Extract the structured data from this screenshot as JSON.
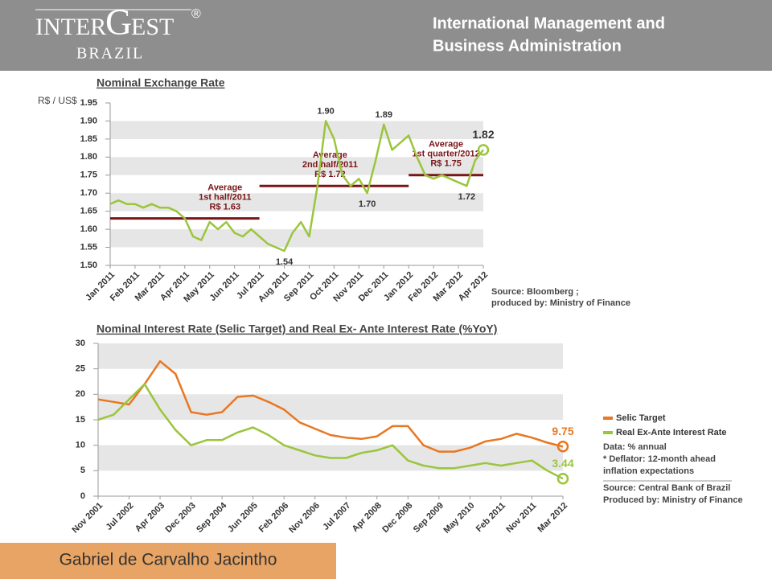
{
  "header": {
    "logo": {
      "part1": "INTER",
      "part2": "G",
      "part3": "EST",
      "mark": "®",
      "sub": "BRAZIL"
    },
    "title_lines": [
      "International Management and",
      "Business Administration"
    ]
  },
  "footer": {
    "author": "Gabriel de Carvalho Jacintho"
  },
  "chart_data": [
    {
      "type": "line",
      "title": "Nominal Exchange Rate",
      "y_label": "R$ / US$",
      "categories": [
        "Jan 2011",
        null,
        null,
        "Feb 2011",
        null,
        null,
        "Mar 2011",
        null,
        null,
        "Apr 2011",
        null,
        null,
        "May 2011",
        null,
        null,
        "Jun 2011",
        null,
        null,
        "Jul 2011",
        null,
        null,
        "Aug 2011",
        null,
        null,
        "Sep 2011",
        null,
        null,
        "Oct 2011",
        null,
        null,
        "Nov 2011",
        null,
        null,
        "Dec 2011",
        null,
        null,
        "Jan 2012",
        null,
        null,
        "Feb 2012",
        null,
        null,
        "Mar 2012",
        null,
        null,
        "Apr 2012"
      ],
      "series": [
        {
          "name": null,
          "color": "#9bc53d",
          "values": [
            1.67,
            1.68,
            1.67,
            1.67,
            1.66,
            1.67,
            1.66,
            1.66,
            1.65,
            1.63,
            1.58,
            1.57,
            1.62,
            1.6,
            1.62,
            1.59,
            1.58,
            1.6,
            1.58,
            1.56,
            1.55,
            1.54,
            1.59,
            1.62,
            1.58,
            1.72,
            1.9,
            1.85,
            1.75,
            1.72,
            1.74,
            1.7,
            1.79,
            1.89,
            1.82,
            1.84,
            1.86,
            1.8,
            1.75,
            1.74,
            1.75,
            1.74,
            1.73,
            1.72,
            1.79,
            1.82
          ],
          "value_labels": [
            null,
            null,
            null,
            null,
            null,
            null,
            null,
            null,
            null,
            null,
            null,
            null,
            null,
            null,
            null,
            null,
            null,
            null,
            null,
            null,
            null,
            "1.54",
            null,
            null,
            null,
            null,
            "1.90",
            null,
            null,
            null,
            null,
            "1.70",
            null,
            "1.89",
            null,
            null,
            null,
            null,
            null,
            null,
            null,
            null,
            null,
            "1.72",
            null,
            "1.82"
          ]
        }
      ],
      "ylim": [
        1.5,
        1.95
      ],
      "yticks": [
        {
          "value": 1.5,
          "label": "1.50"
        },
        1.55,
        {
          "value": 1.6,
          "label": "1.60"
        },
        1.65,
        {
          "value": 1.7,
          "label": "1.70"
        },
        1.75,
        {
          "value": 1.8,
          "label": "1.80"
        },
        1.85,
        {
          "value": 1.9,
          "label": "1.90"
        },
        1.95
      ],
      "grid": "bands",
      "averages": [
        {
          "lines": [
            "Average",
            "1st half/2011",
            "R$ 1.63"
          ],
          "value": 1.63,
          "start": "Jan 2011",
          "end": "Jul 2011"
        },
        {
          "lines": [
            "Average",
            "2nd half/2011",
            "R$ 1.72"
          ],
          "value": 1.72,
          "start": "Jul 2011",
          "end": "Jan 2012"
        },
        {
          "lines": [
            "Average",
            "1st quarter/2012",
            "R$ 1.75"
          ],
          "value": 1.75,
          "start": "Jan 2012",
          "end": "Apr 2012"
        }
      ],
      "notes": [
        "Source: Bloomberg ;",
        "produced by: Ministry of Finance"
      ]
    },
    {
      "type": "line",
      "title": "Nominal Interest Rate (Selic Target) and Real Ex- Ante Interest Rate (%YoY)",
      "categories": [
        "Nov 2001",
        null,
        "Jul 2002",
        null,
        "Apr 2003",
        null,
        "Dec 2003",
        null,
        "Sep 2004",
        null,
        "Jun 2005",
        null,
        "Feb 2006",
        null,
        "Nov 2006",
        null,
        "Jul 2007",
        null,
        "Apr 2008",
        null,
        "Dec 2008",
        null,
        "Sep 2009",
        null,
        "May 2010",
        null,
        "Feb 2011",
        null,
        "Nov 2011",
        null,
        "Mar 2012"
      ],
      "series": [
        {
          "name": "Selic Target",
          "color": "#e87722",
          "values": [
            19,
            18.5,
            18,
            22,
            26.5,
            24,
            16.5,
            16,
            16.5,
            19.5,
            19.75,
            18.5,
            17,
            14.5,
            13.25,
            12,
            11.5,
            11.25,
            11.75,
            13.75,
            13.75,
            10,
            8.75,
            8.75,
            9.5,
            10.75,
            11.25,
            12.25,
            11.5,
            10.5,
            9.75
          ],
          "value_labels": [
            null,
            null,
            null,
            null,
            null,
            null,
            null,
            null,
            null,
            null,
            null,
            null,
            null,
            null,
            null,
            null,
            null,
            null,
            null,
            null,
            null,
            null,
            null,
            null,
            null,
            null,
            null,
            null,
            null,
            null,
            "9.75"
          ]
        },
        {
          "name": "Real Ex-Ante Interest Rate",
          "color": "#9bc53d",
          "values": [
            15,
            16,
            19,
            22,
            17,
            13,
            10,
            11,
            11,
            12.5,
            13.5,
            12,
            10,
            9,
            8,
            7.5,
            7.5,
            8.5,
            9,
            10,
            7,
            6,
            5.5,
            5.5,
            6,
            6.5,
            6,
            6.5,
            7,
            5,
            3.44
          ],
          "value_labels": [
            null,
            null,
            null,
            null,
            null,
            null,
            null,
            null,
            null,
            null,
            null,
            null,
            null,
            null,
            null,
            null,
            null,
            null,
            null,
            null,
            null,
            null,
            null,
            null,
            null,
            null,
            null,
            null,
            null,
            null,
            "3.44"
          ]
        }
      ],
      "ylim": [
        0,
        30
      ],
      "yticks": [
        0,
        5,
        10,
        15,
        20,
        25,
        30
      ],
      "grid": "bands",
      "legend": "right",
      "notes": [
        "Data: % annual",
        "* Deflator: 12-month ahead",
        "inflation expectations",
        "Source: Central Bank of Brazil",
        "Produced by: Ministry of Finance"
      ]
    }
  ]
}
